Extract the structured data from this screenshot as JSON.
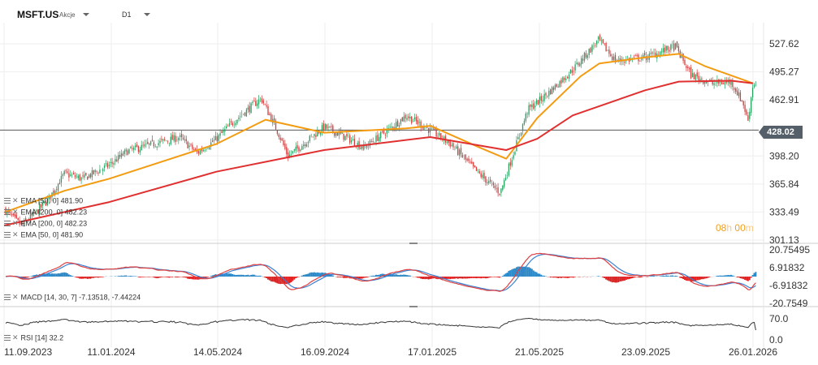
{
  "header": {
    "symbol": "MSFT.US",
    "instrument_type": "Akcje",
    "timeframe": "D1"
  },
  "indicators": {
    "main": [
      "EMA [50, 0] 481.90",
      "EMA [200, 0] 482.23",
      "EMA [200, 0] 482.23",
      "EMA [50, 0] 481.90"
    ],
    "macd": "MACD [14, 30, 7] -7.13518, -7.44224",
    "rsi": "RSI [14] 32.2"
  },
  "countdown": {
    "hours": "08",
    "h_unit": "h",
    "minutes": "00",
    "m_unit": "m"
  },
  "current_price": "428.02",
  "colors": {
    "ema50": "#f39c12",
    "ema200": "#e03030",
    "candle_up": "#27a060",
    "candle_down": "#d23c3c",
    "macd_hist_pos": "#2a88c8",
    "macd_hist_neg": "#e02020",
    "macd_line": "#e04040",
    "macd_signal": "#3a80d0",
    "rsi_line": "#333333",
    "price_line": "#555555"
  },
  "chart_data": [
    {
      "type": "candlestick",
      "symbol": "MSFT.US",
      "x_ticks": [
        "11.09.2023",
        "11.01.2024",
        "14.05.2024",
        "16.09.2024",
        "17.01.2025",
        "21.05.2025",
        "23.09.2025",
        "26.01.2026"
      ],
      "y_ticks": [
        "527.62",
        "495.27",
        "462.91",
        "428.02",
        "398.20",
        "365.84",
        "333.49",
        "301.13"
      ],
      "ylim": [
        301.13,
        545
      ],
      "close_path": [
        [
          "11.09.2023",
          337
        ],
        [
          "01.10.2023",
          318
        ],
        [
          "15.10.2023",
          330
        ],
        [
          "01.11.2023",
          348
        ],
        [
          "20.11.2023",
          378
        ],
        [
          "11.12.2023",
          372
        ],
        [
          "11.01.2024",
          388
        ],
        [
          "01.02.2024",
          404
        ],
        [
          "01.03.2024",
          412
        ],
        [
          "01.04.2024",
          420
        ],
        [
          "22.04.2024",
          402
        ],
        [
          "14.05.2024",
          418
        ],
        [
          "05.06.2024",
          440
        ],
        [
          "05.07.2024",
          465
        ],
        [
          "25.07.2024",
          425
        ],
        [
          "05.08.2024",
          398
        ],
        [
          "16.09.2024",
          432
        ],
        [
          "15.10.2024",
          418
        ],
        [
          "01.11.2024",
          408
        ],
        [
          "01.12.2024",
          430
        ],
        [
          "20.12.2024",
          445
        ],
        [
          "17.01.2025",
          428
        ],
        [
          "10.02.2025",
          412
        ],
        [
          "10.03.2025",
          382
        ],
        [
          "08.04.2025",
          356
        ],
        [
          "20.04.2025",
          392
        ],
        [
          "10.05.2025",
          452
        ],
        [
          "21.05.2025",
          460
        ],
        [
          "10.06.2025",
          478
        ],
        [
          "01.07.2025",
          498
        ],
        [
          "31.07.2025",
          532
        ],
        [
          "20.08.2025",
          508
        ],
        [
          "23.09.2025",
          512
        ],
        [
          "28.10.2025",
          525
        ],
        [
          "15.11.2025",
          492
        ],
        [
          "10.12.2025",
          482
        ],
        [
          "01.01.2026",
          484
        ],
        [
          "15.01.2026",
          458
        ],
        [
          "20.01.2026",
          438
        ],
        [
          "26.01.2026",
          482
        ]
      ],
      "series": [
        {
          "name": "EMA [50, 0]",
          "points": [
            [
              "11.09.2023",
              333
            ],
            [
              "20.11.2023",
              358
            ],
            [
              "11.01.2024",
              372
            ],
            [
              "14.05.2024",
              412
            ],
            [
              "10.07.2024",
              440
            ],
            [
              "16.09.2024",
              425
            ],
            [
              "20.12.2024",
              430
            ],
            [
              "17.01.2025",
              433
            ],
            [
              "15.03.2025",
              408
            ],
            [
              "15.04.2025",
              395
            ],
            [
              "21.05.2025",
              442
            ],
            [
              "10.07.2025",
              490
            ],
            [
              "01.08.2025",
              505
            ],
            [
              "23.09.2025",
              512
            ],
            [
              "01.11.2025",
              516
            ],
            [
              "01.12.2025",
              502
            ],
            [
              "26.01.2026",
              482
            ]
          ]
        },
        {
          "name": "EMA [200, 0]",
          "points": [
            [
              "11.09.2023",
              318
            ],
            [
              "11.01.2024",
              345
            ],
            [
              "14.05.2024",
              380
            ],
            [
              "16.09.2024",
              405
            ],
            [
              "17.01.2025",
              420
            ],
            [
              "15.04.2025",
              405
            ],
            [
              "21.05.2025",
              418
            ],
            [
              "01.07.2025",
              445
            ],
            [
              "23.09.2025",
              474
            ],
            [
              "01.11.2025",
              484
            ],
            [
              "01.01.2026",
              485
            ],
            [
              "26.01.2026",
              482
            ]
          ]
        }
      ]
    },
    {
      "type": "bar",
      "title": "MACD [14, 30, 7]",
      "y_ticks": [
        "20.75495",
        "6.91832",
        "-6.91832",
        "-20.7549"
      ],
      "ylim": [
        -23,
        23
      ],
      "values": {
        "macd": -7.13518,
        "signal": -7.44224
      }
    },
    {
      "type": "line",
      "title": "RSI [14]",
      "y_ticks": [
        "70.0",
        "0.0"
      ],
      "ylim": [
        0,
        85
      ],
      "values": {
        "rsi": 32.2
      }
    }
  ]
}
